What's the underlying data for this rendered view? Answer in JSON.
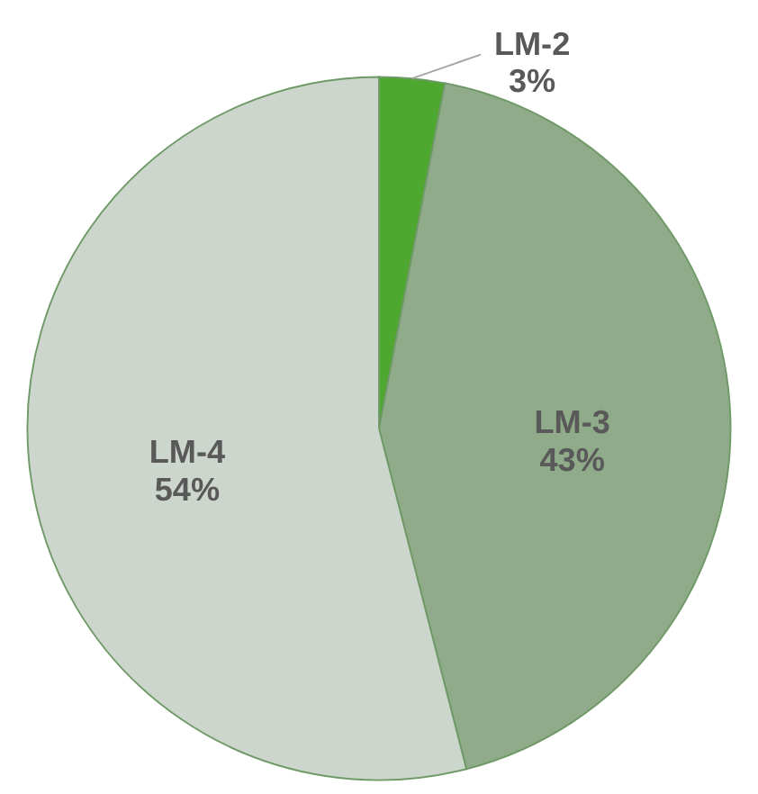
{
  "chart_data": {
    "type": "pie",
    "categories": [
      "LM-2",
      "LM-3",
      "LM-4"
    ],
    "values": [
      3,
      43,
      54
    ],
    "colors": [
      "#4ea72e",
      "#8fab8a",
      "#cdd6cc"
    ],
    "value_labels": [
      "3%",
      "43%",
      "54%"
    ]
  }
}
